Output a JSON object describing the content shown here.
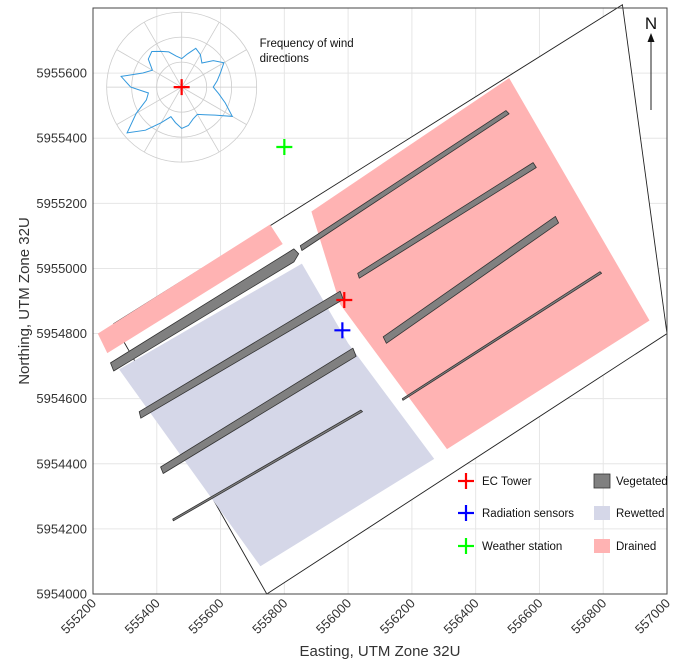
{
  "chart_data": {
    "type": "map",
    "xlabel": "Easting, UTM Zone 32U",
    "ylabel": "Northing, UTM Zone 32U",
    "xlim": [
      555200,
      557000
    ],
    "ylim": [
      5954000,
      5955800
    ],
    "x_ticks": [
      555200,
      555400,
      555600,
      555800,
      556000,
      556200,
      556400,
      556600,
      556800,
      557000
    ],
    "y_ticks": [
      5954000,
      5954200,
      5954400,
      5954600,
      5954800,
      5955000,
      5955200,
      5955400,
      5955600
    ],
    "grid": true,
    "colors": {
      "drained": "#ffb3b3",
      "rewetted": "#d5d7e8",
      "vegetated": "#808080",
      "ec_tower": "#ff0000",
      "radiation_sensors": "#0000ff",
      "weather_station": "#00ff00"
    },
    "site_outline": [
      [
        555265,
        5954830
      ],
      [
        556860,
        5955810
      ],
      [
        557000,
        5954800
      ],
      [
        555745,
        5954000
      ]
    ],
    "drained_areas": [
      [
        [
          555885,
          5955175
        ],
        [
          556505,
          5955585
        ],
        [
          556945,
          5954840
        ],
        [
          556310,
          5954445
        ],
        [
          555975,
          5954890
        ]
      ],
      [
        [
          555215,
          5954800
        ],
        [
          555755,
          5955135
        ],
        [
          555795,
          5955075
        ],
        [
          555245,
          5954740
        ]
      ]
    ],
    "rewetted_area": [
      [
        555282,
        5954690
      ],
      [
        555855,
        5955015
      ],
      [
        556000,
        5954770
      ],
      [
        556270,
        5954415
      ],
      [
        555725,
        5954085
      ]
    ],
    "vegetated_strips": [
      [
        [
          555255,
          5954710
        ],
        [
          555830,
          5955060
        ],
        [
          555845,
          5955045
        ],
        [
          555830,
          5955020
        ],
        [
          555265,
          5954685
        ]
      ],
      [
        [
          555850,
          5955070
        ],
        [
          556495,
          5955485
        ],
        [
          556505,
          5955475
        ],
        [
          555855,
          5955055
        ]
      ],
      [
        [
          555345,
          5954560
        ],
        [
          555975,
          5954930
        ],
        [
          555985,
          5954905
        ],
        [
          555350,
          5954540
        ]
      ],
      [
        [
          556030,
          5954985
        ],
        [
          556580,
          5955325
        ],
        [
          556590,
          5955310
        ],
        [
          556035,
          5954970
        ]
      ],
      [
        [
          555412,
          5954390
        ],
        [
          556015,
          5954755
        ],
        [
          556025,
          5954730
        ],
        [
          555420,
          5954370
        ]
      ],
      [
        [
          556110,
          5954790
        ],
        [
          556650,
          5955160
        ],
        [
          556660,
          5955140
        ],
        [
          556120,
          5954770
        ]
      ],
      [
        [
          555450,
          5954230
        ],
        [
          556040,
          5954565
        ],
        [
          556045,
          5954560
        ],
        [
          555452,
          5954225
        ]
      ],
      [
        [
          556170,
          5954600
        ],
        [
          556790,
          5954990
        ],
        [
          556795,
          5954985
        ],
        [
          556172,
          5954595
        ]
      ]
    ],
    "markers": [
      {
        "name": "EC Tower",
        "x": 555478,
        "y": 5955557,
        "color": "#ff0000"
      },
      {
        "name": "EC Tower",
        "x": 555988,
        "y": 5954903,
        "color": "#ff0000"
      },
      {
        "name": "Radiation sensors",
        "x": 555982,
        "y": 5954810,
        "color": "#0000ff"
      },
      {
        "name": "Weather station",
        "x": 555800,
        "y": 5955373,
        "color": "#00ff00"
      }
    ],
    "wind_rose": {
      "label": "Frequency of wind directions",
      "center": [
        555478,
        5955557
      ],
      "rings": 3,
      "spokes": 12,
      "radii": [
        0.38,
        0.45,
        0.55,
        0.5,
        0.42,
        0.55,
        0.65,
        0.55,
        0.48,
        0.42,
        0.5,
        0.62,
        0.78,
        0.58,
        0.48,
        0.42,
        0.45,
        0.52,
        0.55,
        0.48,
        0.42,
        0.55,
        0.75,
        0.95,
        0.7,
        0.5,
        0.45,
        0.68,
        0.82,
        0.55,
        0.45,
        0.58,
        0.62,
        0.55,
        0.5,
        0.42
      ],
      "color": "#3399dd"
    },
    "legend": [
      {
        "label": "EC Tower",
        "kind": "cross",
        "color": "#ff0000"
      },
      {
        "label": "Radiation sensors",
        "kind": "cross",
        "color": "#0000ff"
      },
      {
        "label": "Weather station",
        "kind": "cross",
        "color": "#00ff00"
      },
      {
        "label": "Vegetated",
        "kind": "patch",
        "color": "#808080"
      },
      {
        "label": "Rewetted",
        "kind": "patch",
        "color": "#d5d7e8"
      },
      {
        "label": "Drained",
        "kind": "patch",
        "color": "#ffb3b3"
      }
    ],
    "north_arrow": {
      "label": "N"
    }
  }
}
